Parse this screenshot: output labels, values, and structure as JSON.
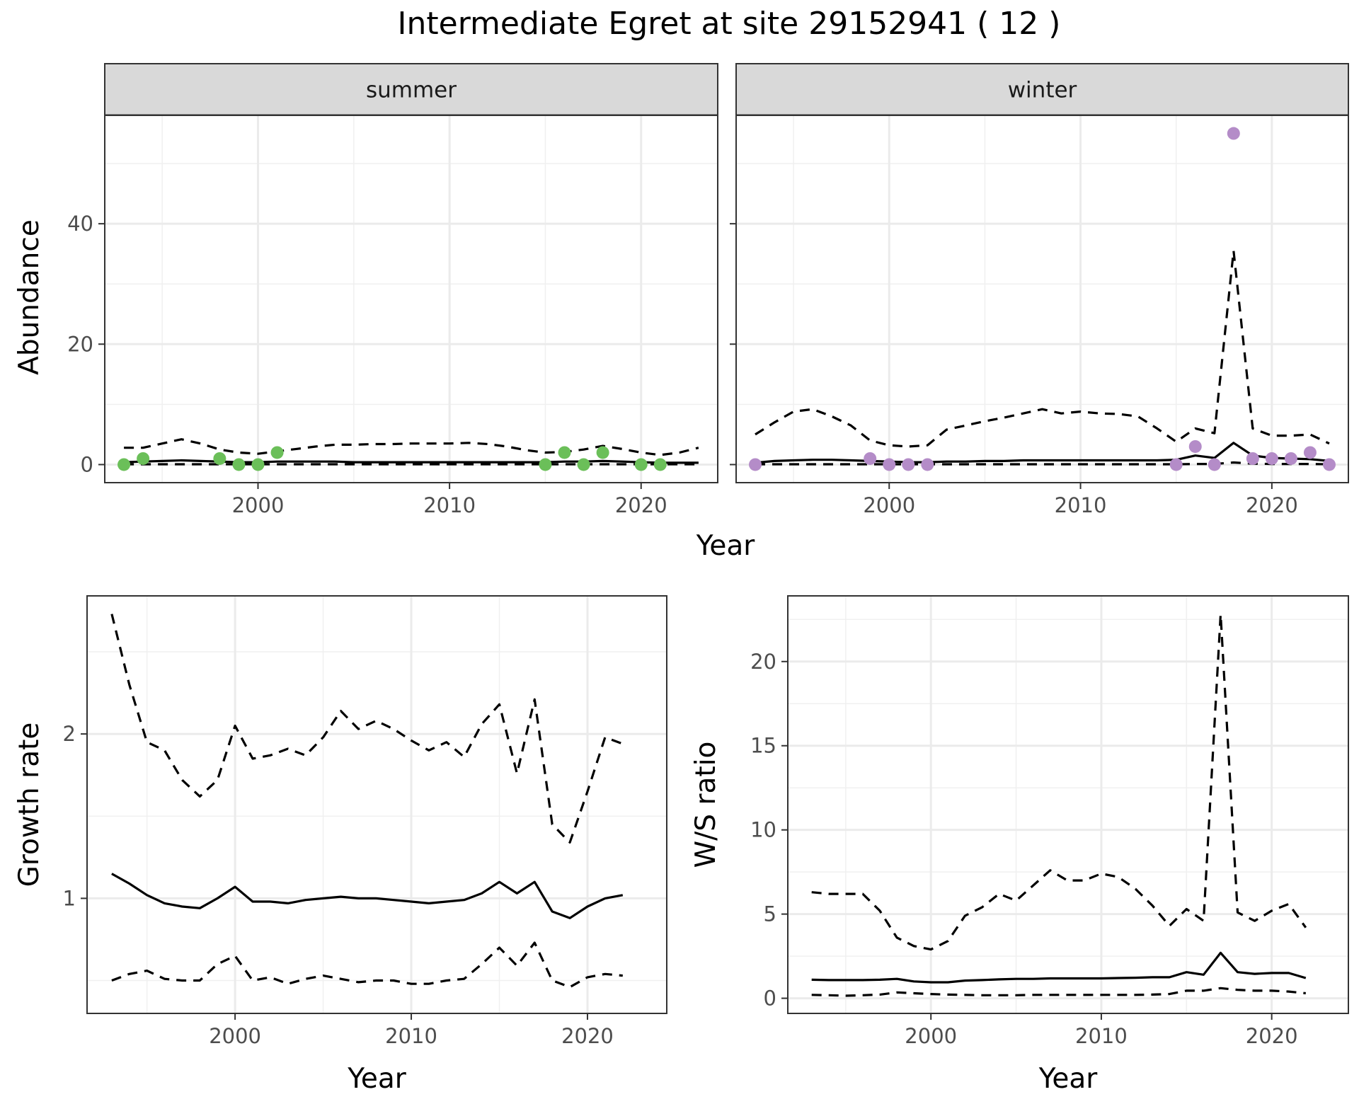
{
  "title": "Intermediate Egret at site 29152941 ( 12 )",
  "chart_data": [
    {
      "type": "line",
      "facet": "summer",
      "strip_label": "summer",
      "xlabel": "Year",
      "ylabel": "Abundance",
      "xlim": [
        1992,
        2024
      ],
      "ylim": [
        -3,
        58
      ],
      "x_ticks": [
        2000,
        2010,
        2020
      ],
      "x_tick_labels": [
        "2000",
        "2010",
        "2020"
      ],
      "y_ticks": [
        0,
        20,
        40
      ],
      "y_tick_labels": [
        "0",
        "20",
        "40"
      ],
      "grid": true,
      "point_color": "#6bbf59",
      "points": {
        "x": [
          1993,
          1994,
          1998,
          1999,
          2000,
          2001,
          2015,
          2016,
          2017,
          2018,
          2020,
          2021
        ],
        "y": [
          0,
          1,
          1,
          0,
          0,
          2,
          0,
          2,
          0,
          2,
          0,
          0
        ]
      },
      "series": [
        {
          "style": "solid",
          "x": [
            1993,
            1994,
            1995,
            1996,
            1997,
            1998,
            1999,
            2000,
            2001,
            2002,
            2003,
            2004,
            2005,
            2006,
            2007,
            2008,
            2009,
            2010,
            2011,
            2012,
            2013,
            2014,
            2015,
            2016,
            2017,
            2018,
            2019,
            2020,
            2021,
            2022,
            2023
          ],
          "y": [
            0.4,
            0.5,
            0.6,
            0.7,
            0.6,
            0.5,
            0.4,
            0.4,
            0.5,
            0.5,
            0.5,
            0.5,
            0.4,
            0.4,
            0.4,
            0.4,
            0.4,
            0.4,
            0.4,
            0.4,
            0.4,
            0.4,
            0.4,
            0.5,
            0.5,
            0.6,
            0.5,
            0.4,
            0.3,
            0.3,
            0.3
          ]
        },
        {
          "style": "dashed",
          "x": [
            1993,
            1994,
            1995,
            1996,
            1997,
            1998,
            1999,
            2000,
            2001,
            2002,
            2003,
            2004,
            2005,
            2006,
            2007,
            2008,
            2009,
            2010,
            2011,
            2012,
            2013,
            2014,
            2015,
            2016,
            2017,
            2018,
            2019,
            2020,
            2021,
            2022,
            2023
          ],
          "y": [
            2.8,
            2.8,
            3.5,
            4.2,
            3.5,
            2.5,
            2.0,
            1.8,
            2.2,
            2.6,
            3.0,
            3.3,
            3.3,
            3.4,
            3.4,
            3.5,
            3.5,
            3.5,
            3.6,
            3.4,
            3.0,
            2.4,
            2.0,
            2.1,
            2.5,
            3.1,
            2.6,
            2.0,
            1.6,
            2.0,
            2.8
          ]
        },
        {
          "style": "dashed",
          "x": [
            1993,
            1994,
            1995,
            1996,
            1997,
            1998,
            1999,
            2000,
            2001,
            2002,
            2003,
            2004,
            2005,
            2006,
            2007,
            2008,
            2009,
            2010,
            2011,
            2012,
            2013,
            2014,
            2015,
            2016,
            2017,
            2018,
            2019,
            2020,
            2021,
            2022,
            2023
          ],
          "y": [
            0.05,
            0.05,
            0.05,
            0.05,
            0.05,
            0.05,
            0.05,
            0.05,
            0.05,
            0.05,
            0.05,
            0.05,
            0.05,
            0.05,
            0.05,
            0.05,
            0.05,
            0.05,
            0.05,
            0.05,
            0.05,
            0.05,
            0.05,
            0.05,
            0.05,
            0.05,
            0.05,
            0.05,
            0.05,
            0.05,
            0.05
          ]
        }
      ]
    },
    {
      "type": "line",
      "facet": "winter",
      "strip_label": "winter",
      "xlabel": "Year",
      "ylabel": "Abundance",
      "xlim": [
        1992,
        2024
      ],
      "ylim": [
        -3,
        58
      ],
      "x_ticks": [
        2000,
        2010,
        2020
      ],
      "x_tick_labels": [
        "2000",
        "2010",
        "2020"
      ],
      "y_ticks": [
        0,
        20,
        40
      ],
      "y_tick_labels": [],
      "grid": true,
      "point_color": "#b48cc8",
      "points": {
        "x": [
          1993,
          1999,
          2000,
          2001,
          2002,
          2015,
          2016,
          2017,
          2018,
          2019,
          2020,
          2021,
          2022,
          2023
        ],
        "y": [
          0,
          1,
          0,
          0,
          0,
          0,
          3,
          0,
          55,
          1,
          1,
          1,
          2,
          0
        ]
      },
      "series": [
        {
          "style": "solid",
          "x": [
            1993,
            1994,
            1995,
            1996,
            1997,
            1998,
            1999,
            2000,
            2001,
            2002,
            2003,
            2004,
            2005,
            2006,
            2007,
            2008,
            2009,
            2010,
            2011,
            2012,
            2013,
            2014,
            2015,
            2016,
            2017,
            2018,
            2019,
            2020,
            2021,
            2022,
            2023
          ],
          "y": [
            0.3,
            0.6,
            0.7,
            0.8,
            0.8,
            0.7,
            0.6,
            0.5,
            0.4,
            0.4,
            0.5,
            0.5,
            0.6,
            0.6,
            0.7,
            0.7,
            0.7,
            0.7,
            0.7,
            0.7,
            0.7,
            0.7,
            0.8,
            1.5,
            1.1,
            3.6,
            1.5,
            1.1,
            1.0,
            0.9,
            0.6
          ]
        },
        {
          "style": "dashed",
          "x": [
            1993,
            1994,
            1995,
            1996,
            1997,
            1998,
            1999,
            2000,
            2001,
            2002,
            2003,
            2004,
            2005,
            2006,
            2007,
            2008,
            2009,
            2010,
            2011,
            2012,
            2013,
            2014,
            2015,
            2016,
            2017,
            2018,
            2019,
            2020,
            2021,
            2022,
            2023
          ],
          "y": [
            5.0,
            7.0,
            8.8,
            9.2,
            8.0,
            6.5,
            4.0,
            3.2,
            3.0,
            3.2,
            5.8,
            6.5,
            7.2,
            7.8,
            8.5,
            9.2,
            8.5,
            8.8,
            8.5,
            8.4,
            8.0,
            6.0,
            3.8,
            6.0,
            5.2,
            35.5,
            6.0,
            4.8,
            4.8,
            5.0,
            3.5
          ]
        },
        {
          "style": "dashed",
          "x": [
            1993,
            1994,
            1995,
            1996,
            1997,
            1998,
            1999,
            2000,
            2001,
            2002,
            2003,
            2004,
            2005,
            2006,
            2007,
            2008,
            2009,
            2010,
            2011,
            2012,
            2013,
            2014,
            2015,
            2016,
            2017,
            2018,
            2019,
            2020,
            2021,
            2022,
            2023
          ],
          "y": [
            0.05,
            0.05,
            0.05,
            0.05,
            0.05,
            0.05,
            0.05,
            0.05,
            0.05,
            0.05,
            0.05,
            0.05,
            0.05,
            0.05,
            0.05,
            0.05,
            0.05,
            0.05,
            0.05,
            0.05,
            0.05,
            0.05,
            0.05,
            0.1,
            0.1,
            0.35,
            0.15,
            0.1,
            0.1,
            0.1,
            0.05
          ]
        }
      ]
    },
    {
      "type": "line",
      "xlabel": "Year",
      "ylabel": "Growth rate",
      "xlim": [
        1991.6,
        2024.5
      ],
      "ylim": [
        0.3,
        2.84
      ],
      "x_ticks": [
        2000,
        2010,
        2020
      ],
      "x_tick_labels": [
        "2000",
        "2010",
        "2020"
      ],
      "y_ticks": [
        1,
        2
      ],
      "y_tick_labels": [
        "1",
        "2"
      ],
      "grid": true,
      "series": [
        {
          "style": "solid",
          "x": [
            1993,
            1994,
            1995,
            1996,
            1997,
            1998,
            1999,
            2000,
            2001,
            2002,
            2003,
            2004,
            2005,
            2006,
            2007,
            2008,
            2009,
            2010,
            2011,
            2012,
            2013,
            2014,
            2015,
            2016,
            2017,
            2018,
            2019,
            2020,
            2021,
            2022
          ],
          "y": [
            1.15,
            1.09,
            1.02,
            0.97,
            0.95,
            0.94,
            1.0,
            1.07,
            0.98,
            0.98,
            0.97,
            0.99,
            1.0,
            1.01,
            1.0,
            1.0,
            0.99,
            0.98,
            0.97,
            0.98,
            0.99,
            1.03,
            1.1,
            1.03,
            1.1,
            0.92,
            0.88,
            0.95,
            1.0,
            1.02
          ]
        },
        {
          "style": "dashed",
          "x": [
            1993,
            1994,
            1995,
            1996,
            1997,
            1998,
            1999,
            2000,
            2001,
            2002,
            2003,
            2004,
            2005,
            2006,
            2007,
            2008,
            2009,
            2010,
            2011,
            2012,
            2013,
            2014,
            2015,
            2016,
            2017,
            2018,
            2019,
            2020,
            2021,
            2022
          ],
          "y": [
            2.73,
            2.3,
            1.95,
            1.9,
            1.72,
            1.62,
            1.72,
            2.05,
            1.85,
            1.87,
            1.91,
            1.87,
            1.98,
            2.14,
            2.03,
            2.08,
            2.03,
            1.96,
            1.9,
            1.95,
            1.86,
            2.06,
            2.18,
            1.76,
            2.21,
            1.45,
            1.34,
            1.65,
            1.98,
            1.94
          ]
        },
        {
          "style": "dashed",
          "x": [
            1993,
            1994,
            1995,
            1996,
            1997,
            1998,
            1999,
            2000,
            2001,
            2002,
            2003,
            2004,
            2005,
            2006,
            2007,
            2008,
            2009,
            2010,
            2011,
            2012,
            2013,
            2014,
            2015,
            2016,
            2017,
            2018,
            2019,
            2020,
            2021,
            2022
          ],
          "y": [
            0.5,
            0.54,
            0.56,
            0.51,
            0.5,
            0.5,
            0.6,
            0.65,
            0.5,
            0.52,
            0.48,
            0.51,
            0.53,
            0.51,
            0.49,
            0.5,
            0.5,
            0.48,
            0.48,
            0.5,
            0.51,
            0.6,
            0.7,
            0.59,
            0.73,
            0.5,
            0.46,
            0.52,
            0.54,
            0.53
          ]
        }
      ]
    },
    {
      "type": "line",
      "xlabel": "Year",
      "ylabel": "W/S ratio",
      "xlim": [
        1991.6,
        2024.5
      ],
      "ylim": [
        -0.9,
        23.9
      ],
      "x_ticks": [
        2000,
        2010,
        2020
      ],
      "x_tick_labels": [
        "2000",
        "2010",
        "2020"
      ],
      "y_ticks": [
        0,
        5,
        10,
        15,
        20
      ],
      "y_tick_labels": [
        "0",
        "5",
        "10",
        "15",
        "20"
      ],
      "grid": true,
      "series": [
        {
          "style": "solid",
          "x": [
            1993,
            1994,
            1995,
            1996,
            1997,
            1998,
            1999,
            2000,
            2001,
            2002,
            2003,
            2004,
            2005,
            2006,
            2007,
            2008,
            2009,
            2010,
            2011,
            2012,
            2013,
            2014,
            2015,
            2016,
            2017,
            2018,
            2019,
            2020,
            2021,
            2022
          ],
          "y": [
            1.1,
            1.08,
            1.08,
            1.08,
            1.1,
            1.15,
            1.0,
            0.95,
            0.95,
            1.05,
            1.08,
            1.12,
            1.15,
            1.15,
            1.18,
            1.18,
            1.18,
            1.18,
            1.2,
            1.22,
            1.25,
            1.25,
            1.55,
            1.4,
            2.7,
            1.55,
            1.45,
            1.5,
            1.5,
            1.2
          ]
        },
        {
          "style": "dashed",
          "x": [
            1993,
            1994,
            1995,
            1996,
            1997,
            1998,
            1999,
            2000,
            2001,
            2002,
            2003,
            2004,
            2005,
            2006,
            2007,
            2008,
            2009,
            2010,
            2011,
            2012,
            2013,
            2014,
            2015,
            2016,
            2017,
            2018,
            2019,
            2020,
            2021,
            2022
          ],
          "y": [
            6.3,
            6.2,
            6.2,
            6.2,
            5.2,
            3.6,
            3.1,
            2.9,
            3.4,
            4.9,
            5.4,
            6.2,
            5.8,
            6.7,
            7.6,
            7.0,
            7.0,
            7.4,
            7.2,
            6.5,
            5.5,
            4.3,
            5.3,
            4.6,
            22.8,
            5.1,
            4.6,
            5.2,
            5.6,
            4.2
          ]
        },
        {
          "style": "dashed",
          "x": [
            1993,
            1994,
            1995,
            1996,
            1997,
            1998,
            1999,
            2000,
            2001,
            2002,
            2003,
            2004,
            2005,
            2006,
            2007,
            2008,
            2009,
            2010,
            2011,
            2012,
            2013,
            2014,
            2015,
            2016,
            2017,
            2018,
            2019,
            2020,
            2021,
            2022
          ],
          "y": [
            0.2,
            0.18,
            0.15,
            0.18,
            0.22,
            0.35,
            0.3,
            0.25,
            0.22,
            0.2,
            0.18,
            0.18,
            0.18,
            0.2,
            0.2,
            0.2,
            0.2,
            0.2,
            0.2,
            0.2,
            0.22,
            0.25,
            0.45,
            0.45,
            0.6,
            0.5,
            0.45,
            0.45,
            0.4,
            0.3
          ]
        }
      ]
    }
  ]
}
